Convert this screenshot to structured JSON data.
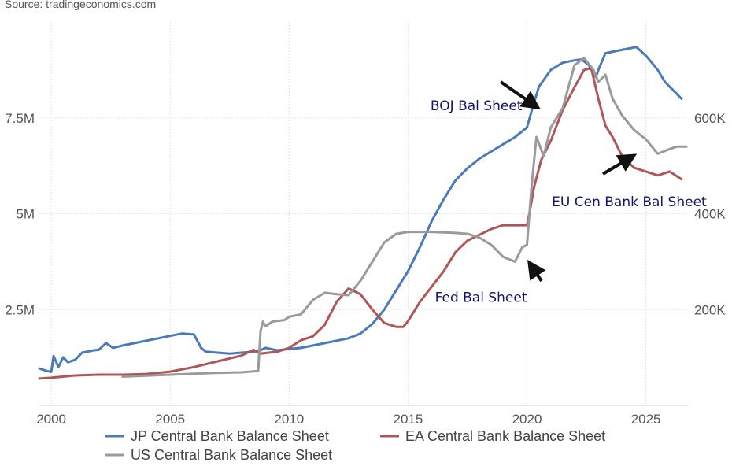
{
  "source": "Source: tradingeconomics.com",
  "chart_data": {
    "type": "line",
    "x_axis": {
      "ticks": [
        "2000",
        "2005",
        "2010",
        "2015",
        "2020",
        "2025"
      ],
      "xlim": [
        1999.5,
        2026.8
      ]
    },
    "y_left": {
      "ticks": [
        {
          "v": 2.5,
          "label": "2.5M"
        },
        {
          "v": 5,
          "label": "5M"
        },
        {
          "v": 7.5,
          "label": "7.5M"
        }
      ],
      "ylim": [
        0,
        10
      ]
    },
    "y_right": {
      "ticks": [
        {
          "v": 200,
          "label": "200K"
        },
        {
          "v": 400,
          "label": "400K"
        },
        {
          "v": 600,
          "label": "600K"
        }
      ],
      "ylim": [
        0,
        800
      ]
    },
    "grid": true,
    "legend_position": "bottom",
    "series": [
      {
        "name": "JP Central Bank Balance Sheet",
        "color": "#4a7ab8",
        "axis": "right",
        "points": [
          [
            1999.5,
            77
          ],
          [
            1999.8,
            72
          ],
          [
            2000.0,
            70
          ],
          [
            2000.1,
            103
          ],
          [
            2000.3,
            80
          ],
          [
            2000.5,
            100
          ],
          [
            2000.7,
            90
          ],
          [
            2001.0,
            95
          ],
          [
            2001.3,
            110
          ],
          [
            2001.8,
            115
          ],
          [
            2002.0,
            116
          ],
          [
            2002.3,
            130
          ],
          [
            2002.6,
            120
          ],
          [
            2003.0,
            125
          ],
          [
            2003.5,
            130
          ],
          [
            2004.0,
            135
          ],
          [
            2004.5,
            140
          ],
          [
            2005.0,
            145
          ],
          [
            2005.5,
            150
          ],
          [
            2006.0,
            148
          ],
          [
            2006.3,
            120
          ],
          [
            2006.5,
            112
          ],
          [
            2007.0,
            110
          ],
          [
            2007.5,
            108
          ],
          [
            2008.0,
            110
          ],
          [
            2008.5,
            112
          ],
          [
            2008.8,
            115
          ],
          [
            2009.0,
            120
          ],
          [
            2009.5,
            115
          ],
          [
            2010.0,
            118
          ],
          [
            2010.5,
            120
          ],
          [
            2011.0,
            125
          ],
          [
            2011.5,
            130
          ],
          [
            2012.0,
            135
          ],
          [
            2012.5,
            140
          ],
          [
            2013.0,
            150
          ],
          [
            2013.5,
            170
          ],
          [
            2014.0,
            200
          ],
          [
            2014.5,
            240
          ],
          [
            2015.0,
            280
          ],
          [
            2015.5,
            330
          ],
          [
            2016.0,
            385
          ],
          [
            2016.5,
            430
          ],
          [
            2017.0,
            470
          ],
          [
            2017.5,
            495
          ],
          [
            2018.0,
            515
          ],
          [
            2018.5,
            530
          ],
          [
            2019.0,
            545
          ],
          [
            2019.5,
            560
          ],
          [
            2020.0,
            580
          ],
          [
            2020.2,
            615
          ],
          [
            2020.5,
            665
          ],
          [
            2021.0,
            700
          ],
          [
            2021.5,
            715
          ],
          [
            2022.0,
            720
          ],
          [
            2022.3,
            722
          ],
          [
            2022.6,
            710
          ],
          [
            2022.9,
            685
          ],
          [
            2023.0,
            700
          ],
          [
            2023.3,
            735
          ],
          [
            2023.8,
            740
          ],
          [
            2024.3,
            745
          ],
          [
            2024.6,
            748
          ],
          [
            2025.0,
            730
          ],
          [
            2025.5,
            700
          ],
          [
            2025.8,
            675
          ],
          [
            2026.1,
            660
          ],
          [
            2026.3,
            650
          ],
          [
            2026.5,
            640
          ]
        ]
      },
      {
        "name": "EA Central Bank Balance Sheet",
        "color": "#b05656",
        "axis": "left",
        "points": [
          [
            1999.5,
            0.7
          ],
          [
            2000.0,
            0.72
          ],
          [
            2001.0,
            0.78
          ],
          [
            2002.0,
            0.8
          ],
          [
            2003.0,
            0.8
          ],
          [
            2004.0,
            0.82
          ],
          [
            2005.0,
            0.88
          ],
          [
            2006.0,
            1.0
          ],
          [
            2007.0,
            1.15
          ],
          [
            2008.0,
            1.3
          ],
          [
            2008.5,
            1.45
          ],
          [
            2008.8,
            1.35
          ],
          [
            2009.5,
            1.4
          ],
          [
            2010.0,
            1.5
          ],
          [
            2010.5,
            1.7
          ],
          [
            2011.0,
            1.8
          ],
          [
            2011.5,
            2.1
          ],
          [
            2012.0,
            2.7
          ],
          [
            2012.5,
            3.05
          ],
          [
            2013.0,
            2.9
          ],
          [
            2013.5,
            2.5
          ],
          [
            2014.0,
            2.15
          ],
          [
            2014.5,
            2.05
          ],
          [
            2014.8,
            2.05
          ],
          [
            2015.0,
            2.2
          ],
          [
            2015.5,
            2.7
          ],
          [
            2016.0,
            3.1
          ],
          [
            2016.5,
            3.5
          ],
          [
            2017.0,
            4.0
          ],
          [
            2017.5,
            4.3
          ],
          [
            2018.0,
            4.45
          ],
          [
            2018.5,
            4.6
          ],
          [
            2019.0,
            4.7
          ],
          [
            2019.5,
            4.7
          ],
          [
            2019.8,
            4.7
          ],
          [
            2020.0,
            4.7
          ],
          [
            2020.1,
            5.0
          ],
          [
            2020.3,
            5.7
          ],
          [
            2020.6,
            6.4
          ],
          [
            2021.0,
            6.9
          ],
          [
            2021.5,
            7.7
          ],
          [
            2022.0,
            8.3
          ],
          [
            2022.4,
            8.75
          ],
          [
            2022.7,
            8.8
          ],
          [
            2023.0,
            8.0
          ],
          [
            2023.3,
            7.3
          ],
          [
            2023.6,
            7.0
          ],
          [
            2024.0,
            6.5
          ],
          [
            2024.5,
            6.2
          ],
          [
            2025.0,
            6.1
          ],
          [
            2025.5,
            6.0
          ],
          [
            2026.0,
            6.1
          ],
          [
            2026.5,
            5.9
          ]
        ]
      },
      {
        "name": "US Central Bank Balance Sheet",
        "color": "#9a9a9a",
        "axis": "right",
        "points": [
          [
            2003.0,
            60
          ],
          [
            2004.0,
            62
          ],
          [
            2005.0,
            64
          ],
          [
            2006.0,
            66
          ],
          [
            2007.0,
            68
          ],
          [
            2008.0,
            69
          ],
          [
            2008.7,
            72
          ],
          [
            2008.8,
            155
          ],
          [
            2008.9,
            175
          ],
          [
            2009.0,
            165
          ],
          [
            2009.3,
            175
          ],
          [
            2009.8,
            178
          ],
          [
            2010.0,
            185
          ],
          [
            2010.5,
            190
          ],
          [
            2011.0,
            220
          ],
          [
            2011.5,
            235
          ],
          [
            2012.0,
            232
          ],
          [
            2012.5,
            230
          ],
          [
            2013.0,
            260
          ],
          [
            2013.5,
            300
          ],
          [
            2014.0,
            340
          ],
          [
            2014.5,
            358
          ],
          [
            2015.0,
            362
          ],
          [
            2016.0,
            362
          ],
          [
            2017.0,
            360
          ],
          [
            2017.5,
            358
          ],
          [
            2018.0,
            350
          ],
          [
            2018.5,
            335
          ],
          [
            2019.0,
            310
          ],
          [
            2019.5,
            300
          ],
          [
            2019.8,
            330
          ],
          [
            2020.0,
            335
          ],
          [
            2020.2,
            460
          ],
          [
            2020.4,
            560
          ],
          [
            2020.7,
            520
          ],
          [
            2021.0,
            580
          ],
          [
            2021.5,
            620
          ],
          [
            2022.0,
            710
          ],
          [
            2022.4,
            725
          ],
          [
            2022.8,
            700
          ],
          [
            2023.0,
            675
          ],
          [
            2023.3,
            690
          ],
          [
            2023.6,
            640
          ],
          [
            2024.0,
            605
          ],
          [
            2024.5,
            575
          ],
          [
            2025.0,
            555
          ],
          [
            2025.5,
            525
          ],
          [
            2026.0,
            535
          ],
          [
            2026.3,
            540
          ],
          [
            2026.7,
            540
          ]
        ]
      }
    ],
    "annotations": [
      {
        "text": "BOJ Bal Sheet",
        "x": 2019.8,
        "y": 7.7,
        "axis": "left"
      },
      {
        "text": "EU Cen Bank Bal Sheet",
        "x": 2024.3,
        "y": 5.2,
        "axis": "left"
      },
      {
        "text": "Fed Bal Sheet",
        "x": 2020.0,
        "y": 2.7,
        "axis": "left"
      }
    ]
  }
}
